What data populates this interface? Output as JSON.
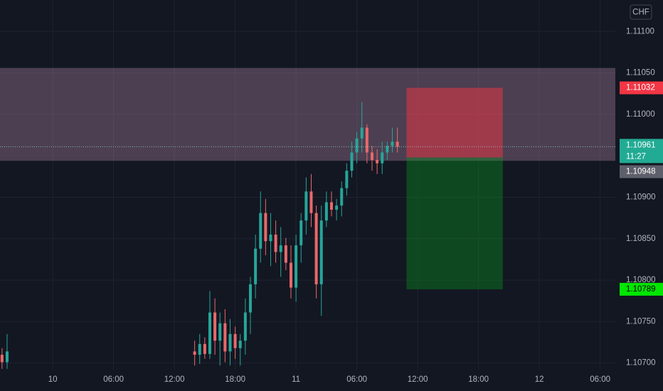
{
  "chart_data": {
    "type": "candlestick",
    "currency": "CHF",
    "x": [
      -5,
      -4.5,
      14,
      14.5,
      15,
      15.5,
      16,
      16.5,
      17,
      17.5,
      18,
      18.5,
      19,
      19.5,
      20,
      20.5,
      21,
      21.5,
      22,
      22.5,
      23,
      23.5,
      24,
      24.5,
      25,
      25.5,
      26,
      26.5,
      27,
      27.5,
      28,
      28.5,
      29,
      29.5,
      30,
      30.5,
      31,
      31.5,
      32,
      32.5,
      33,
      33.5,
      34
    ],
    "open": [
      1.1071,
      1.10701,
      1.10714,
      1.1071,
      1.10723,
      1.10711,
      1.10761,
      1.10727,
      1.10748,
      1.10714,
      1.10735,
      1.10718,
      1.10727,
      1.10761,
      1.10795,
      1.10838,
      1.10881,
      1.10847,
      1.10855,
      1.10834,
      1.10842,
      1.10821,
      1.10791,
      1.10842,
      1.10872,
      1.10907,
      1.10881,
      1.10795,
      1.10872,
      1.10894,
      1.10885,
      1.1089,
      1.10911,
      1.10932,
      1.10954,
      1.10971,
      1.10984,
      1.10954,
      1.10945,
      1.10941,
      1.10954,
      1.10962,
      1.10967
    ],
    "high": [
      1.10718,
      1.10735,
      1.10727,
      1.10735,
      1.10731,
      1.10787,
      1.10778,
      1.10761,
      1.10765,
      1.10753,
      1.10744,
      1.10735,
      1.10778,
      1.10804,
      1.10855,
      1.10907,
      1.10898,
      1.10881,
      1.10872,
      1.10864,
      1.10851,
      1.10842,
      1.10855,
      1.10881,
      1.10924,
      1.10928,
      1.1089,
      1.1089,
      1.10907,
      1.10907,
      1.10898,
      1.10919,
      1.10941,
      1.10967,
      1.10979,
      1.11015,
      1.10988,
      1.10962,
      1.10958,
      1.10967,
      1.10967,
      1.10984,
      1.10984
    ],
    "low": [
      1.10693,
      1.10693,
      1.10697,
      1.10699,
      1.10705,
      1.10705,
      1.1071,
      1.10697,
      1.10701,
      1.10697,
      1.10705,
      1.10697,
      1.1071,
      1.10735,
      1.10778,
      1.10821,
      1.1083,
      1.10817,
      1.10821,
      1.10804,
      1.10812,
      1.10778,
      1.10774,
      1.10821,
      1.10855,
      1.10864,
      1.10778,
      1.10757,
      1.10864,
      1.10877,
      1.10872,
      1.10877,
      1.10902,
      1.10924,
      1.10941,
      1.10954,
      1.10941,
      1.10932,
      1.10928,
      1.10928,
      1.10945,
      1.10954,
      1.10954
    ],
    "close": [
      1.10701,
      1.10714,
      1.1071,
      1.10723,
      1.10711,
      1.10761,
      1.10727,
      1.10748,
      1.10714,
      1.10735,
      1.10718,
      1.10727,
      1.10761,
      1.10795,
      1.10838,
      1.10881,
      1.10847,
      1.10855,
      1.10834,
      1.10842,
      1.10821,
      1.10791,
      1.10842,
      1.10872,
      1.10907,
      1.10881,
      1.10795,
      1.10872,
      1.10894,
      1.10885,
      1.1089,
      1.10911,
      1.10932,
      1.10954,
      1.10971,
      1.10984,
      1.10954,
      1.10945,
      1.10941,
      1.10954,
      1.10962,
      1.10967,
      1.10961
    ],
    "up_color": "#26a69a",
    "down_color": "#e8696b",
    "xlim": [
      -5.2,
      55.5
    ],
    "xticks": [
      {
        "value": 0,
        "label": "10"
      },
      {
        "value": 6,
        "label": "06:00"
      },
      {
        "value": 12,
        "label": "12:00"
      },
      {
        "value": 18,
        "label": "18:00"
      },
      {
        "value": 24,
        "label": "11"
      },
      {
        "value": 30,
        "label": "06:00"
      },
      {
        "value": 36,
        "label": "12:00"
      },
      {
        "value": 42,
        "label": "18:00"
      },
      {
        "value": 48,
        "label": "12"
      },
      {
        "value": 54,
        "label": "06:00"
      }
    ],
    "ylim": [
      1.10692,
      1.11138
    ],
    "yticks": [
      {
        "value": 1.111,
        "label": "1.11100"
      },
      {
        "value": 1.1105,
        "label": "1.11050"
      },
      {
        "value": 1.11,
        "label": "1.11000"
      },
      {
        "value": 1.109,
        "label": "1.10900"
      },
      {
        "value": 1.1085,
        "label": "1.10850"
      },
      {
        "value": 1.108,
        "label": "1.10800"
      },
      {
        "value": 1.1075,
        "label": "1.10750"
      },
      {
        "value": 1.107,
        "label": "1.10700"
      }
    ],
    "grid": true,
    "zone": {
      "low": 1.10944,
      "high": 1.11056,
      "color": "rgba(200,150,180,0.32)"
    },
    "position": {
      "start": 34.9,
      "end": 44.4,
      "stop": 1.11032,
      "entry": 1.10948,
      "target": 1.10789,
      "stop_color": "rgba(242,54,69,0.5)",
      "target_color": "rgba(8,153,29,0.38)"
    },
    "last_price": 1.10961,
    "countdown": "11:27"
  }
}
